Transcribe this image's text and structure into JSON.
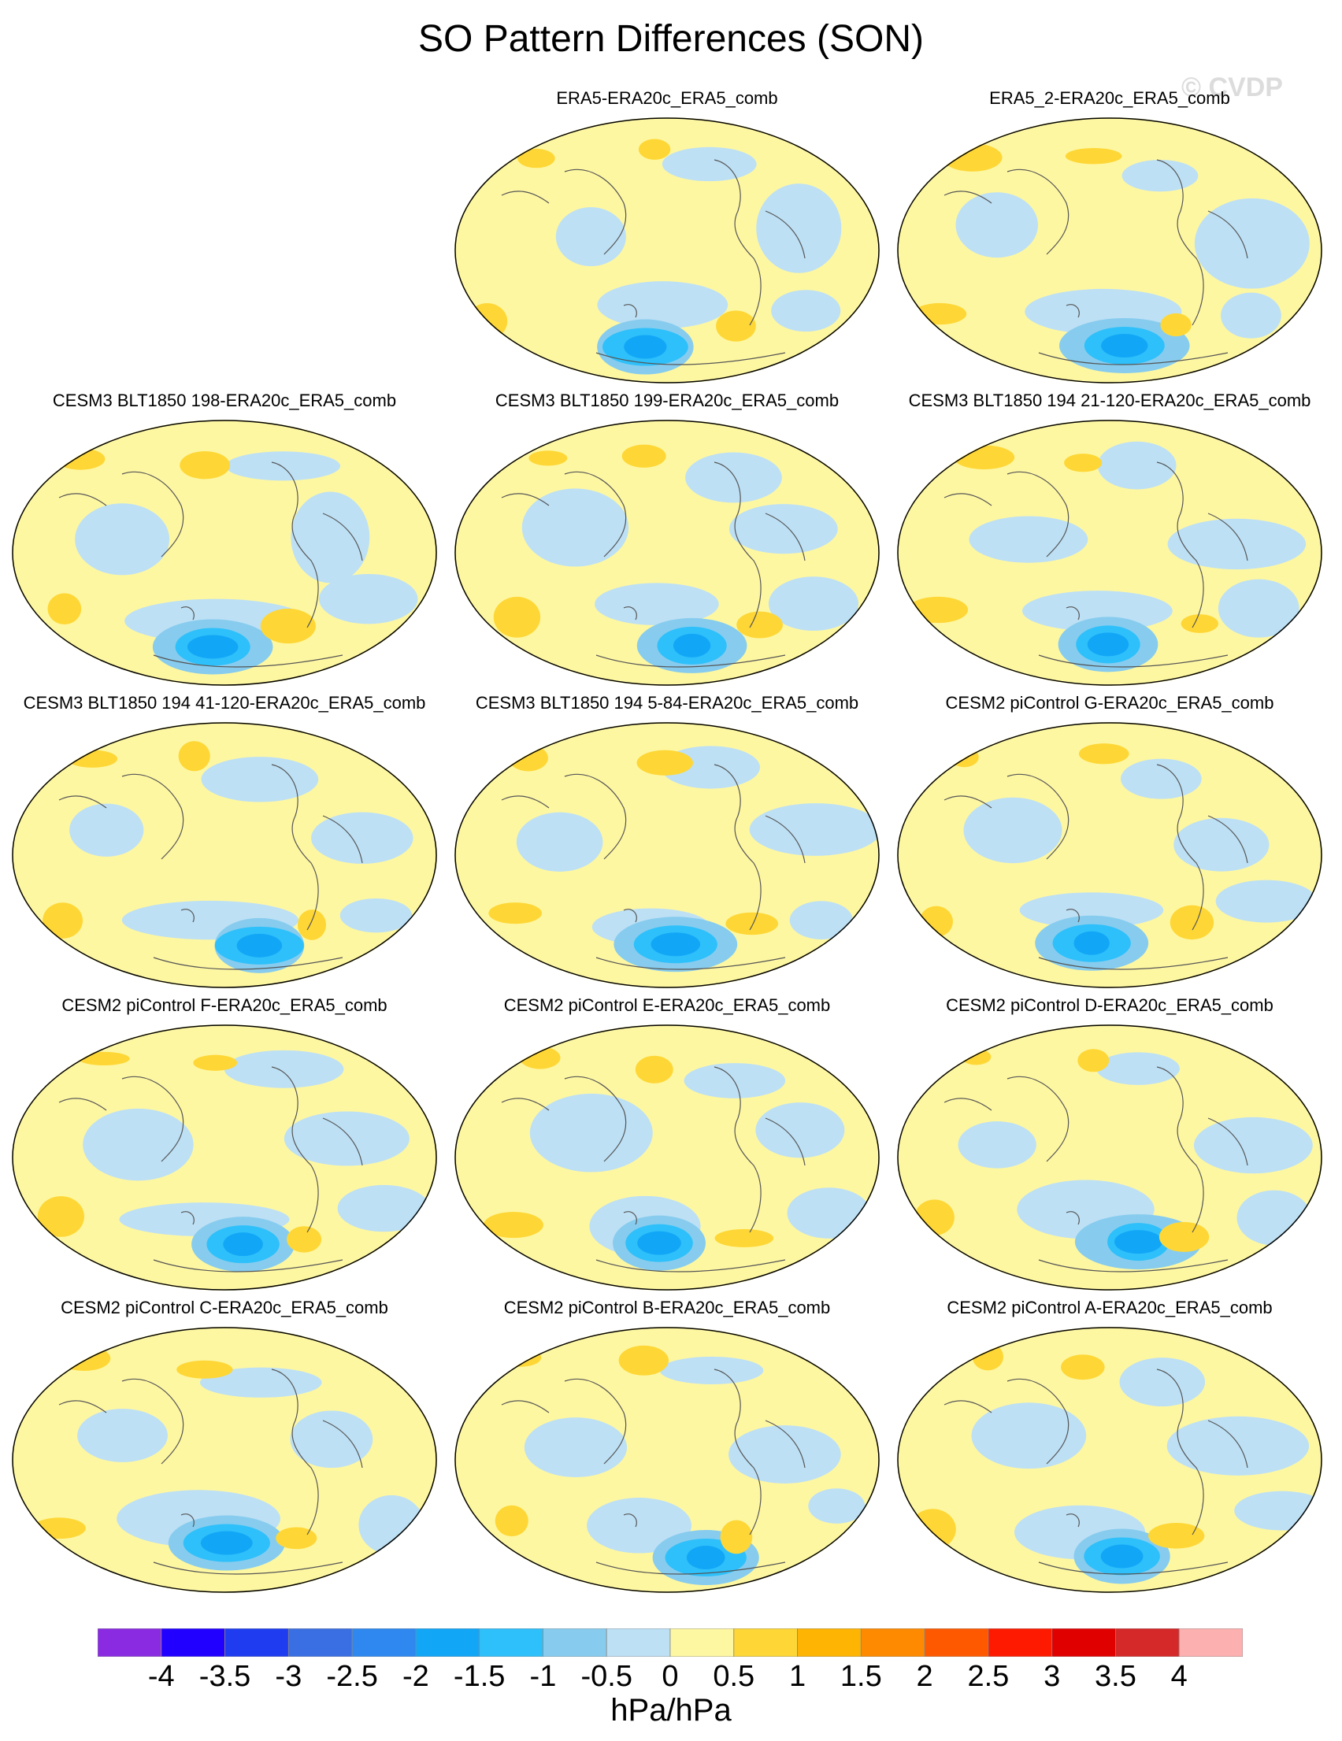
{
  "title": "SO Pattern Differences (SON)",
  "watermark": "© CVDP",
  "panels": [
    {
      "title": "ERA5-ERA20c_ERA5_comb",
      "row": 0,
      "col": 1
    },
    {
      "title": "ERA5_2-ERA20c_ERA5_comb",
      "row": 0,
      "col": 2
    },
    {
      "title": "CESM3 BLT1850 198-ERA20c_ERA5_comb",
      "row": 1,
      "col": 0
    },
    {
      "title": "CESM3 BLT1850 199-ERA20c_ERA5_comb",
      "row": 1,
      "col": 1
    },
    {
      "title": "CESM3 BLT1850 194 21-120-ERA20c_ERA5_comb",
      "row": 1,
      "col": 2
    },
    {
      "title": "CESM3 BLT1850 194 41-120-ERA20c_ERA5_comb",
      "row": 2,
      "col": 0
    },
    {
      "title": "CESM3 BLT1850 194 5-84-ERA20c_ERA5_comb",
      "row": 2,
      "col": 1
    },
    {
      "title": "CESM2 piControl G-ERA20c_ERA5_comb",
      "row": 2,
      "col": 2
    },
    {
      "title": "CESM2 piControl F-ERA20c_ERA5_comb",
      "row": 3,
      "col": 0
    },
    {
      "title": "CESM2 piControl E-ERA20c_ERA5_comb",
      "row": 3,
      "col": 1
    },
    {
      "title": "CESM2 piControl D-ERA20c_ERA5_comb",
      "row": 3,
      "col": 2
    },
    {
      "title": "CESM2 piControl C-ERA20c_ERA5_comb",
      "row": 4,
      "col": 0
    },
    {
      "title": "CESM2 piControl B-ERA20c_ERA5_comb",
      "row": 4,
      "col": 1
    },
    {
      "title": "CESM2 piControl A-ERA20c_ERA5_comb",
      "row": 4,
      "col": 2
    }
  ],
  "colorbar": {
    "colors": [
      "#8a2be2",
      "#2200ff",
      "#1f3cf0",
      "#3a6ee3",
      "#2e88f0",
      "#12a6f7",
      "#2ec0fa",
      "#87ccee",
      "#bde0f5",
      "#fef7a2",
      "#fed736",
      "#fdb403",
      "#fd8a00",
      "#fe5900",
      "#fd1a00",
      "#e00000",
      "#d52828",
      "#fdb0b0"
    ],
    "labels": [
      "-4",
      "-3.5",
      "-3",
      "-2.5",
      "-2",
      "-1.5",
      "-1",
      "-0.5",
      "0",
      "0.5",
      "1",
      "1.5",
      "2",
      "2.5",
      "3",
      "3.5",
      "4"
    ],
    "units": "hPa/hPa"
  }
}
